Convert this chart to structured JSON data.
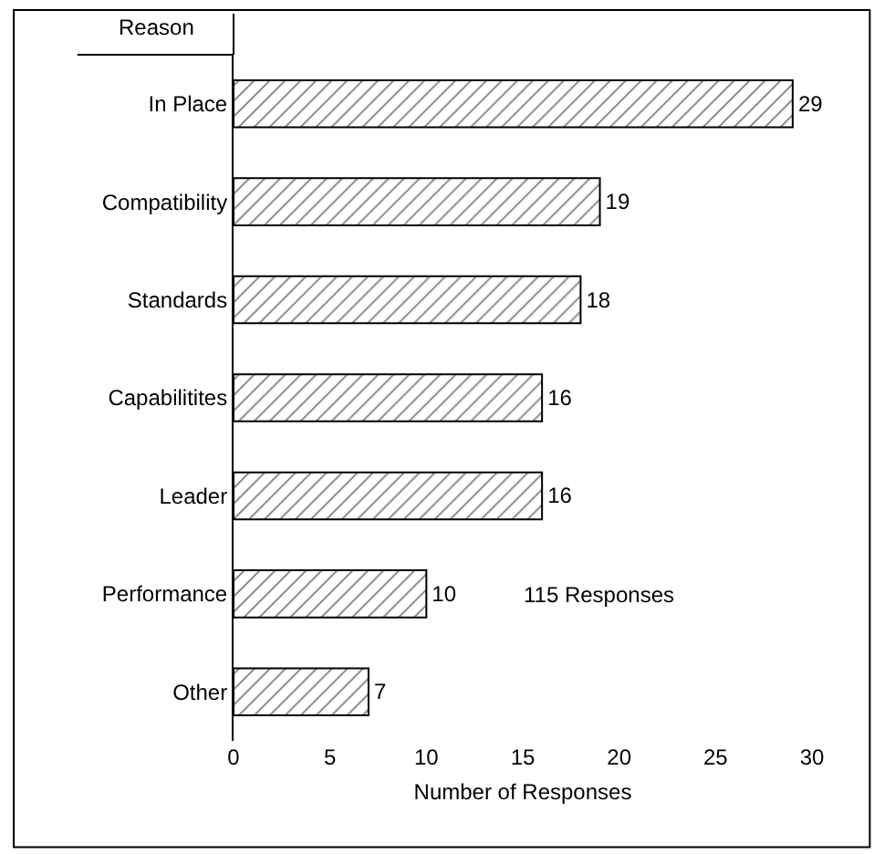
{
  "chart_data": {
    "type": "bar",
    "orientation": "horizontal",
    "ylabel": "Reason",
    "xlabel": "Number of Responses",
    "categories": [
      "In Place",
      "Compatibility",
      "Standards",
      "Capabilitites",
      "Leader",
      "Performance",
      "Other"
    ],
    "values": [
      29,
      19,
      18,
      16,
      16,
      10,
      7
    ],
    "color": "#000000",
    "data_labels": true,
    "xlim": [
      0,
      30
    ],
    "xticks": [
      0,
      5,
      10,
      15,
      20,
      25,
      30
    ],
    "annotations": [
      "115 Responses"
    ]
  }
}
